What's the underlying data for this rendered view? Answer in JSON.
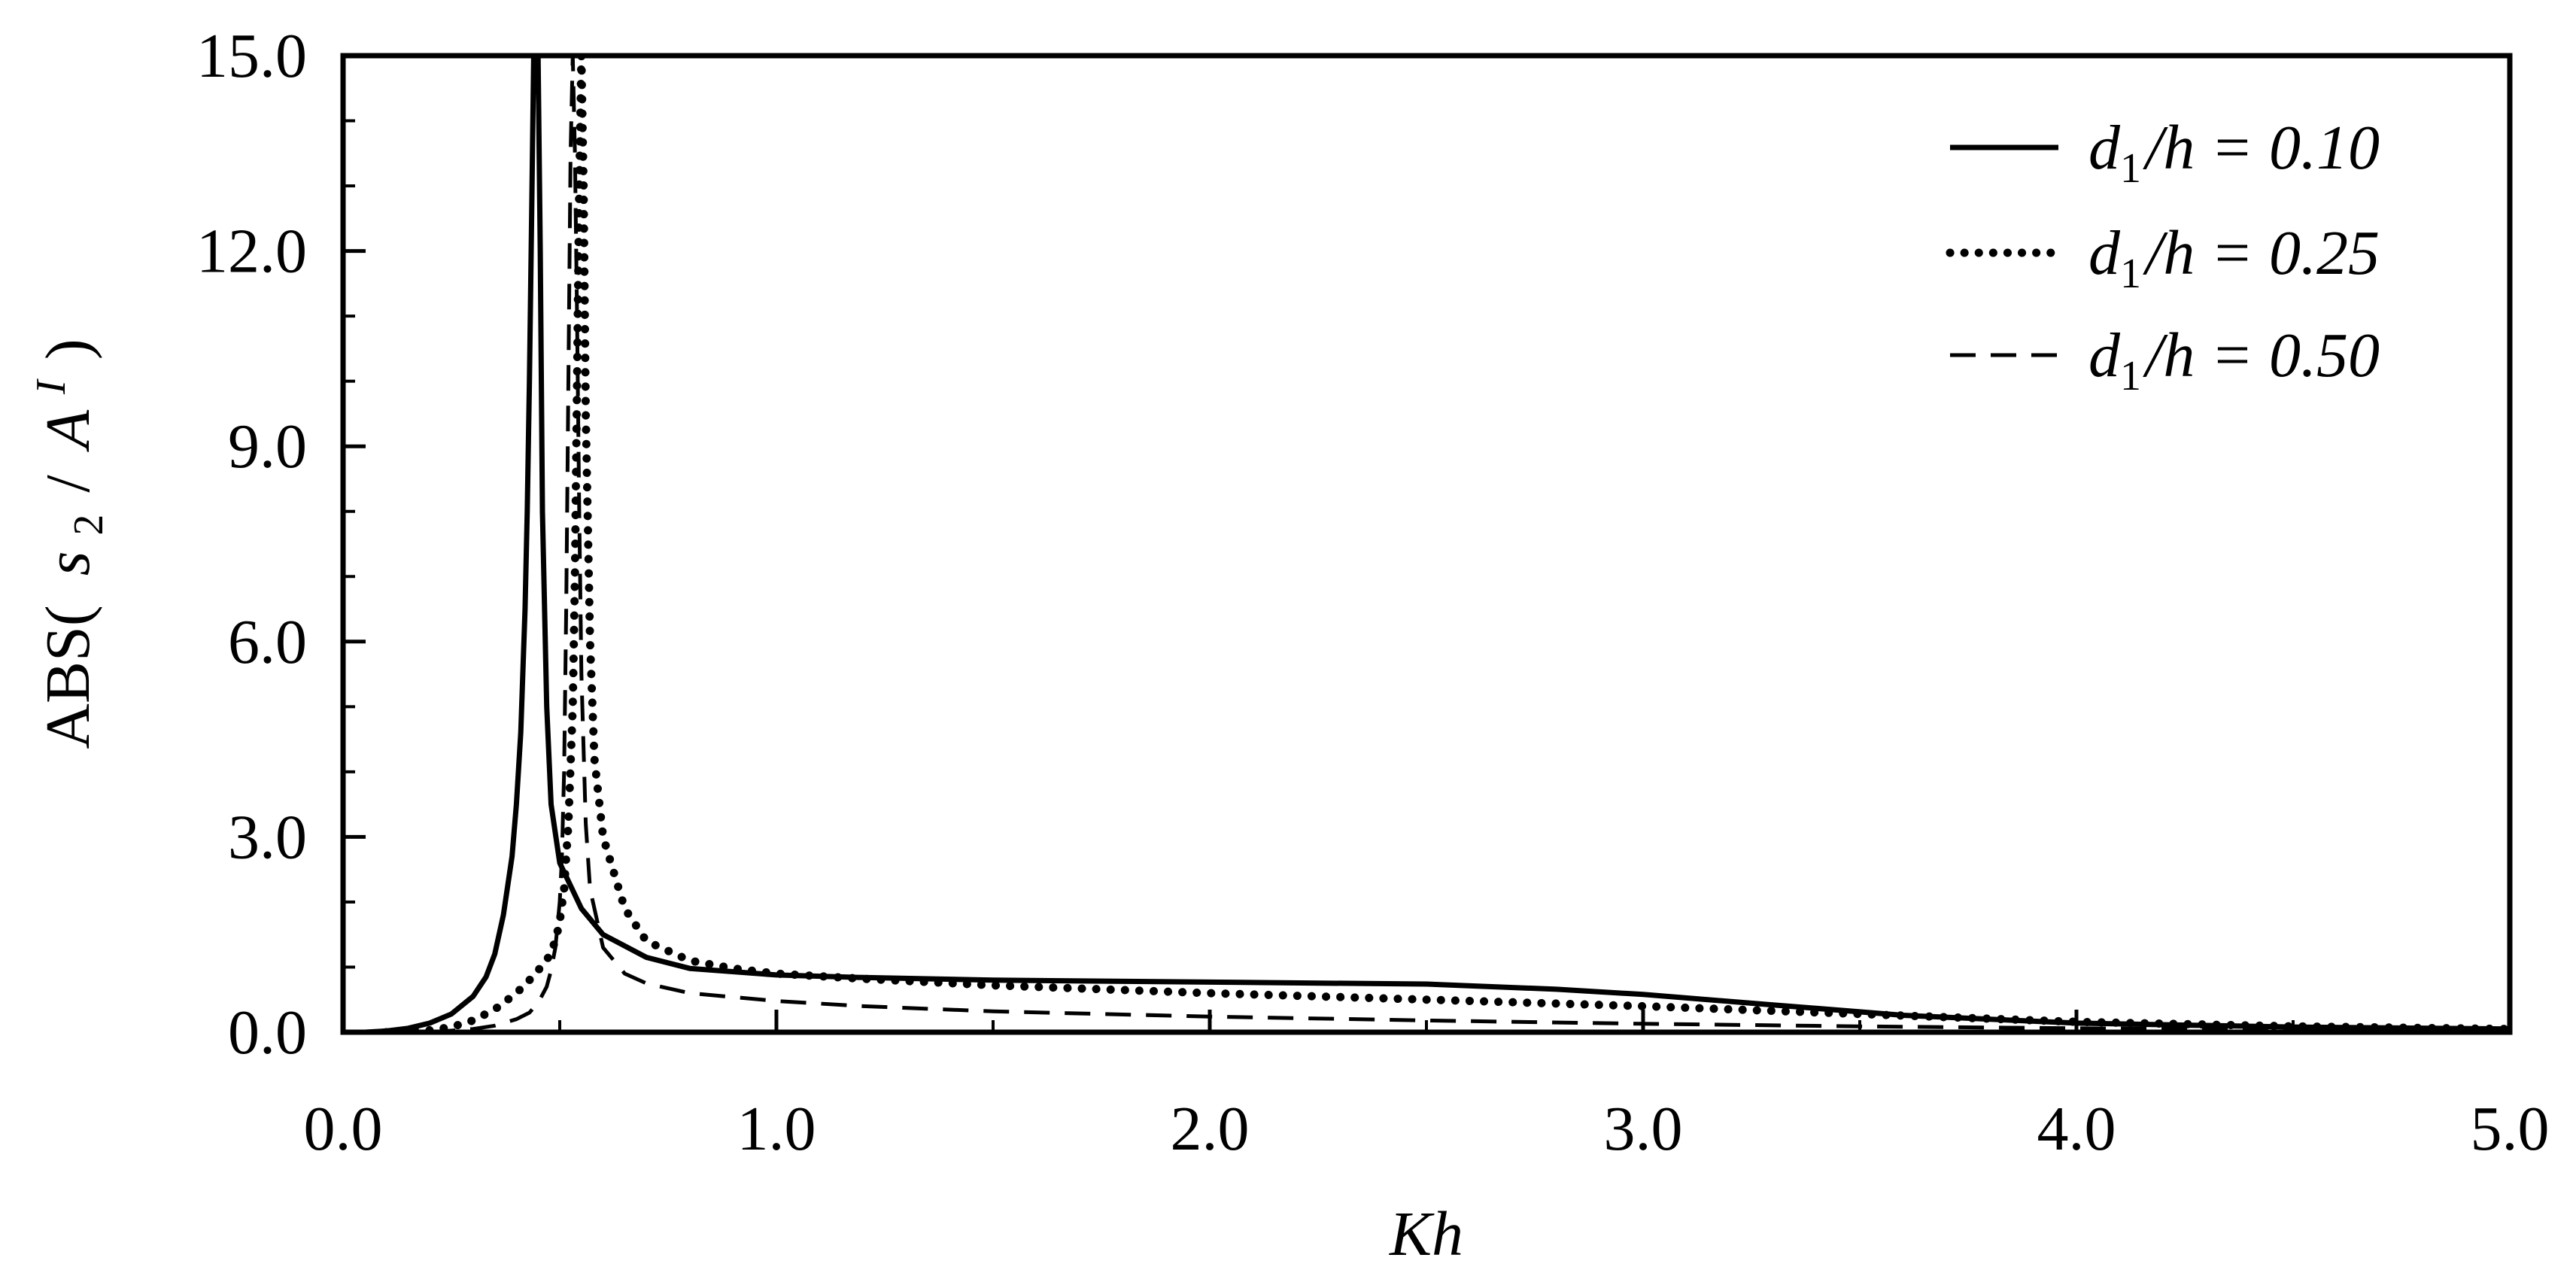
{
  "chart_data": {
    "type": "line",
    "title": "",
    "xlabel": "Kh",
    "ylabel": "ABS( s2 / A^I )",
    "ylabel_parts": {
      "prefix": "ABS(",
      "s": "s",
      "sub": "2",
      "slash": "/",
      "a": "A",
      "sup": "I",
      "suffix": ")"
    },
    "xlim": [
      0.0,
      5.0
    ],
    "ylim": [
      0.0,
      15.0
    ],
    "xticks": [
      {
        "value": 0.0,
        "label": "0.0"
      },
      {
        "value": 1.0,
        "label": "1.0"
      },
      {
        "value": 2.0,
        "label": "2.0"
      },
      {
        "value": 3.0,
        "label": "3.0"
      },
      {
        "value": 4.0,
        "label": "4.0"
      },
      {
        "value": 5.0,
        "label": "5.0"
      }
    ],
    "yticks": [
      {
        "value": 0.0,
        "label": "0.0"
      },
      {
        "value": 3.0,
        "label": "3.0"
      },
      {
        "value": 6.0,
        "label": "6.0"
      },
      {
        "value": 9.0,
        "label": "9.0"
      },
      {
        "value": 12.0,
        "label": "12.0"
      },
      {
        "value": 15.0,
        "label": "15.0"
      }
    ],
    "x_minor_step": 0.5,
    "y_minor_step": 1.0,
    "grid": false,
    "legend_position": "top-right",
    "series": [
      {
        "name": "d1/h = 0.10",
        "legend": {
          "d": "d",
          "sub": "1",
          "rest": "/h = 0.10"
        },
        "style": "solid",
        "x": [
          0.05,
          0.1,
          0.15,
          0.2,
          0.25,
          0.3,
          0.33,
          0.35,
          0.37,
          0.39,
          0.4,
          0.41,
          0.42,
          0.425,
          0.43,
          0.435,
          0.44,
          0.445,
          0.45,
          0.455,
          0.46,
          0.47,
          0.48,
          0.5,
          0.55,
          0.6,
          0.7,
          0.8,
          1.0,
          1.2,
          1.5,
          2.0,
          2.5,
          2.8,
          3.0,
          3.3,
          3.6,
          4.0,
          4.5,
          5.0
        ],
        "y": [
          0.0,
          0.02,
          0.06,
          0.14,
          0.28,
          0.55,
          0.85,
          1.2,
          1.8,
          2.7,
          3.5,
          4.6,
          6.5,
          8.0,
          10.0,
          12.5,
          15.0,
          15.0,
          15.0,
          12.0,
          8.0,
          5.0,
          3.5,
          2.6,
          1.9,
          1.5,
          1.15,
          0.98,
          0.88,
          0.84,
          0.8,
          0.77,
          0.74,
          0.66,
          0.58,
          0.42,
          0.26,
          0.14,
          0.08,
          0.05
        ]
      },
      {
        "name": "d1/h = 0.25",
        "legend": {
          "d": "d",
          "sub": "1",
          "rest": "/h = 0.25"
        },
        "style": "dotted",
        "x": [
          0.1,
          0.2,
          0.25,
          0.3,
          0.35,
          0.4,
          0.43,
          0.45,
          0.47,
          0.49,
          0.5,
          0.51,
          0.52,
          0.53,
          0.535,
          0.54,
          0.545,
          0.55,
          0.555,
          0.56,
          0.57,
          0.58,
          0.6,
          0.65,
          0.7,
          0.8,
          0.9,
          1.0,
          1.2,
          1.5,
          2.0,
          2.5,
          3.0,
          3.5,
          4.0,
          4.5,
          5.0
        ],
        "y": [
          0.0,
          0.03,
          0.08,
          0.18,
          0.35,
          0.6,
          0.8,
          0.95,
          1.1,
          1.4,
          1.7,
          2.2,
          3.2,
          5.0,
          7.0,
          10.0,
          13.0,
          15.0,
          13.0,
          9.5,
          6.0,
          4.2,
          3.0,
          1.9,
          1.4,
          1.1,
          0.98,
          0.9,
          0.82,
          0.72,
          0.6,
          0.5,
          0.4,
          0.28,
          0.16,
          0.09,
          0.05
        ]
      },
      {
        "name": "d1/h = 0.50",
        "legend": {
          "d": "d",
          "sub": "1",
          "rest": "/h = 0.50"
        },
        "style": "dashed",
        "x": [
          0.2,
          0.3,
          0.35,
          0.4,
          0.43,
          0.45,
          0.47,
          0.48,
          0.49,
          0.5,
          0.505,
          0.51,
          0.515,
          0.52,
          0.525,
          0.53,
          0.535,
          0.54,
          0.545,
          0.55,
          0.56,
          0.57,
          0.6,
          0.65,
          0.7,
          0.8,
          1.0,
          1.2,
          1.5,
          2.0,
          2.5,
          3.0,
          3.5,
          4.0,
          4.5,
          5.0
        ],
        "y": [
          0.0,
          0.05,
          0.1,
          0.2,
          0.3,
          0.45,
          0.7,
          0.95,
          1.3,
          2.0,
          2.7,
          4.0,
          6.5,
          10.0,
          13.5,
          15.0,
          13.5,
          11.0,
          8.0,
          5.5,
          3.2,
          2.2,
          1.3,
          0.9,
          0.75,
          0.6,
          0.48,
          0.4,
          0.32,
          0.24,
          0.18,
          0.13,
          0.09,
          0.06,
          0.04,
          0.03
        ]
      }
    ]
  }
}
